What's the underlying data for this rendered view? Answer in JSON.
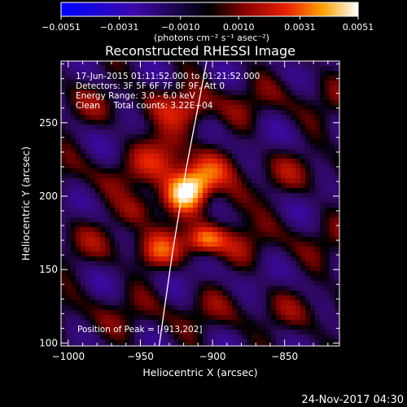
{
  "chart_data": {
    "type": "heatmap",
    "title": "Reconstructed RHESSI Image",
    "xlabel": "Heliocentric X (arcsec)",
    "ylabel": "Heliocentric Y (arcsec)",
    "xlim": [
      -1005,
      -812
    ],
    "ylim": [
      98,
      292
    ],
    "x_ticks": [
      -1000,
      -950,
      -900,
      -850
    ],
    "x_tick_labels": [
      "−1000",
      "−950",
      "−900",
      "−850"
    ],
    "y_ticks": [
      100,
      150,
      200,
      250
    ],
    "y_tick_labels": [
      "100",
      "150",
      "200",
      "250"
    ],
    "colorbar": {
      "min": -0.0051,
      "max": 0.0051,
      "ticks": [
        -0.0051,
        -0.0031,
        -0.001,
        0.001,
        0.0031,
        0.0051
      ],
      "tick_labels": [
        "−0.0051",
        "−0.0031",
        "−0.0010",
        "0.0010",
        "0.0031",
        "0.0051"
      ],
      "unit_label": "(photons cm⁻² s⁻¹ asec⁻²)"
    },
    "annotations": [
      "17-Jun-2015 01:11:52.000 to 01:21:52.000",
      "Detectors: 3F 5F 6F 7F 8F 9F, Att 0",
      "Energy Range: 3.0 - 6.0 keV",
      "Clean     Total counts: 3.22E+04"
    ],
    "peak_label": "Position of Peak = [-913,202]",
    "peak": [
      -913,
      202
    ],
    "limb_curve": [
      [
        -937,
        98
      ],
      [
        -928,
        160
      ],
      [
        -918,
        220
      ],
      [
        -904,
        292
      ]
    ],
    "sources": [
      {
        "x": -918,
        "y": 203,
        "amp": 0.0051,
        "sx": 14,
        "sy": 9,
        "rot": 35
      },
      {
        "x": -905,
        "y": 170,
        "amp": 0.0038,
        "sx": 9,
        "sy": 7,
        "rot": 0
      },
      {
        "x": -930,
        "y": 232,
        "amp": 0.003,
        "sx": 12,
        "sy": 12,
        "rot": 0
      },
      {
        "x": -913,
        "y": 258,
        "amp": 0.002,
        "sx": 9,
        "sy": 9,
        "rot": 0
      },
      {
        "x": -950,
        "y": 192,
        "amp": 0.0024,
        "sx": 11,
        "sy": 8,
        "rot": 20
      },
      {
        "x": -885,
        "y": 195,
        "amp": 0.0022,
        "sx": 9,
        "sy": 10,
        "rot": 0
      },
      {
        "x": -940,
        "y": 160,
        "amp": 0.0018,
        "sx": 10,
        "sy": 8,
        "rot": 0
      }
    ]
  },
  "timestamp": "24-Nov-2017 04:30"
}
